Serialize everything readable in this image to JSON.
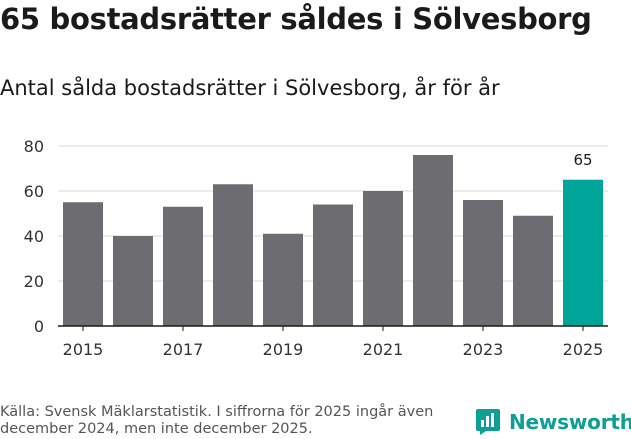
{
  "title": "65 bostadsrätter såldes i Sölvesborg",
  "subtitle": "Antal sålda bostadsrätter i Sölvesborg, år för år",
  "source": "Källa: Svensk Mäklarstatistik. I siffrorna för 2025 ingår även december 2024, men inte december 2025.",
  "brand": {
    "name": "Newsworthy",
    "icon": "newsworthy-logo-icon",
    "color": "#0f9e93"
  },
  "chart_data": {
    "type": "bar",
    "title": "Antal sålda bostadsrätter i Sölvesborg, år för år",
    "xlabel": "",
    "ylabel": "",
    "categories": [
      "2015",
      "2016",
      "2017",
      "2018",
      "2019",
      "2020",
      "2021",
      "2022",
      "2023",
      "2024",
      "2025"
    ],
    "values": [
      55,
      40,
      53,
      63,
      41,
      54,
      60,
      76,
      56,
      49,
      65
    ],
    "x_tick_labels": [
      "2015",
      "2017",
      "2019",
      "2021",
      "2023",
      "2025"
    ],
    "y_ticks": [
      0,
      20,
      40,
      60,
      80
    ],
    "ylim": [
      0,
      80
    ],
    "grid": true,
    "highlight_index": 10,
    "highlight_label": "65",
    "colors": {
      "bar": "#6d6c71",
      "highlight": "#00a59a",
      "grid": "#d9d9d9",
      "axis": "#1a1a1a"
    }
  }
}
